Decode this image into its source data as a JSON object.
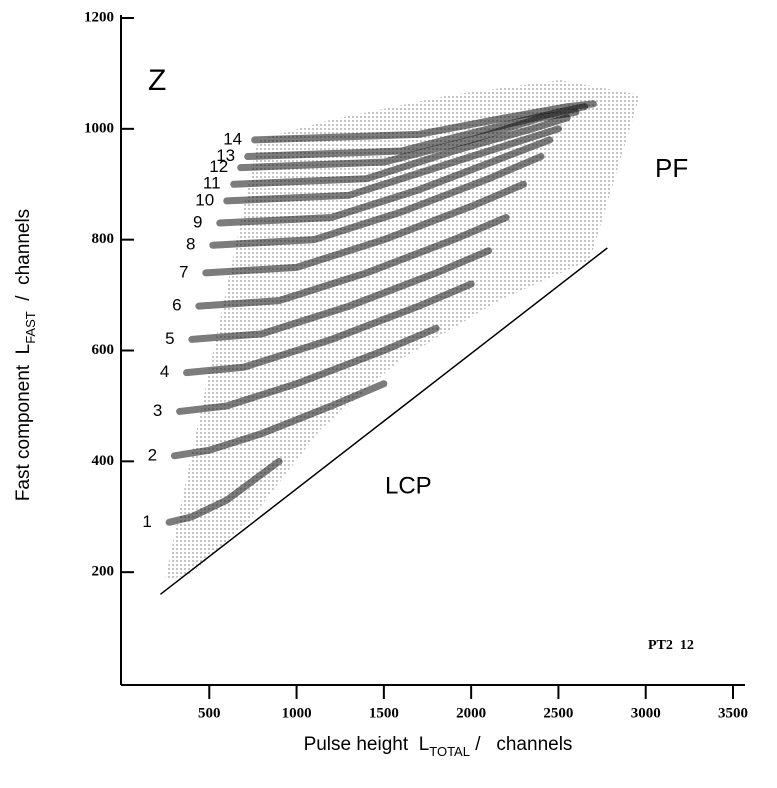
{
  "chart_data": {
    "type": "line",
    "xlabel": "Pulse height  L",
    "xlabel_sub": "TOTAL",
    "xlabel_end": " /   channels",
    "ylabel": "Fast component  L",
    "ylabel_sub": "FAST",
    "ylabel_end": "  /  channels",
    "annotations": [
      "Z",
      "PF",
      "LCP",
      "PT2  12"
    ],
    "xlim": [
      0,
      3500
    ],
    "ylim": [
      0,
      1200
    ],
    "xticks": [
      500,
      1000,
      1500,
      2000,
      2500,
      3000,
      3500
    ],
    "yticks": [
      200,
      400,
      600,
      800,
      1000,
      1200
    ],
    "color": "#111111",
    "boundary": {
      "x": [
        220,
        2780
      ],
      "values": [
        160,
        785
      ]
    },
    "series": [
      {
        "name": "1",
        "x": [
          270,
          400,
          600,
          900
        ],
        "values": [
          290,
          300,
          330,
          400
        ]
      },
      {
        "name": "2",
        "x": [
          300,
          500,
          800,
          1200,
          1500
        ],
        "values": [
          410,
          420,
          450,
          500,
          540
        ]
      },
      {
        "name": "3",
        "x": [
          330,
          600,
          1000,
          1500,
          1800
        ],
        "values": [
          490,
          500,
          540,
          600,
          640
        ]
      },
      {
        "name": "4",
        "x": [
          370,
          700,
          1200,
          1700,
          2000
        ],
        "values": [
          560,
          570,
          620,
          680,
          720
        ]
      },
      {
        "name": "5",
        "x": [
          400,
          800,
          1300,
          1800,
          2100
        ],
        "values": [
          620,
          630,
          680,
          740,
          780
        ]
      },
      {
        "name": "6",
        "x": [
          440,
          900,
          1400,
          1900,
          2200
        ],
        "values": [
          680,
          690,
          740,
          800,
          840
        ]
      },
      {
        "name": "7",
        "x": [
          480,
          1000,
          1500,
          2000,
          2300
        ],
        "values": [
          740,
          750,
          800,
          860,
          900
        ]
      },
      {
        "name": "8",
        "x": [
          520,
          1100,
          1600,
          2100,
          2400
        ],
        "values": [
          790,
          800,
          850,
          910,
          950
        ]
      },
      {
        "name": "9",
        "x": [
          560,
          1200,
          1700,
          2200,
          2450
        ],
        "values": [
          830,
          840,
          890,
          950,
          980
        ]
      },
      {
        "name": "10",
        "x": [
          600,
          1300,
          1800,
          2300,
          2500
        ],
        "values": [
          870,
          880,
          930,
          980,
          1000
        ]
      },
      {
        "name": "11",
        "x": [
          640,
          1400,
          1900,
          2350,
          2550
        ],
        "values": [
          900,
          910,
          960,
          1000,
          1020
        ]
      },
      {
        "name": "12",
        "x": [
          680,
          1500,
          2000,
          2400,
          2600
        ],
        "values": [
          930,
          940,
          980,
          1020,
          1030
        ]
      },
      {
        "name": "13",
        "x": [
          720,
          1600,
          2100,
          2500,
          2650
        ],
        "values": [
          950,
          960,
          1000,
          1030,
          1040
        ]
      },
      {
        "name": "14",
        "x": [
          760,
          1700,
          2200,
          2550,
          2700
        ],
        "values": [
          980,
          990,
          1020,
          1040,
          1045
        ]
      }
    ]
  }
}
